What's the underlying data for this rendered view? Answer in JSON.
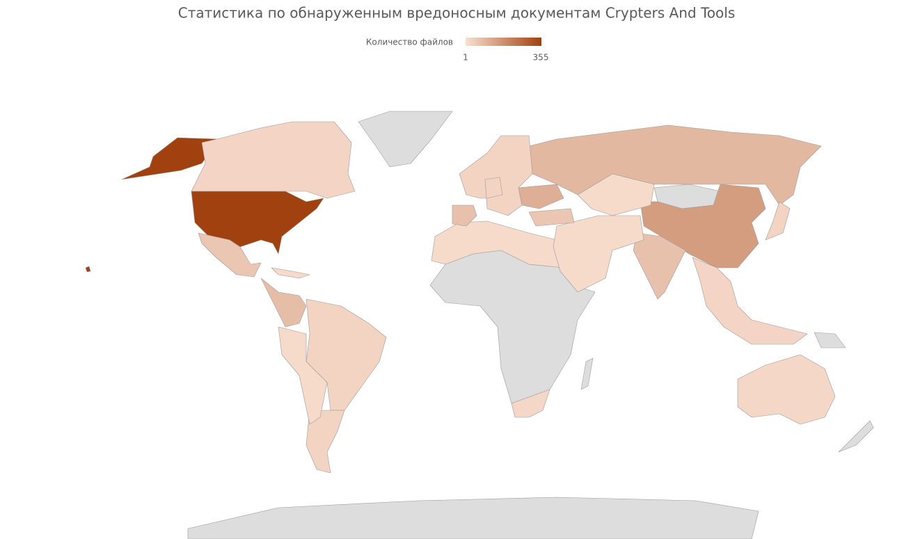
{
  "chart_data": {
    "type": "choropleth",
    "title": "Статистика по обнаруженным вредоносным документам Crypters And Tools",
    "legend": {
      "title": "Количество файлов",
      "min": 1,
      "max": 355,
      "color_low": "#fae0d2",
      "color_high": "#a0410f"
    },
    "no_data_color": "#dddddd",
    "values": [
      355,
      300,
      150,
      90,
      25,
      60,
      70,
      30,
      20,
      30,
      80,
      15,
      15,
      15,
      20,
      70,
      30,
      110,
      60,
      15,
      25,
      30,
      15
    ]
  }
}
